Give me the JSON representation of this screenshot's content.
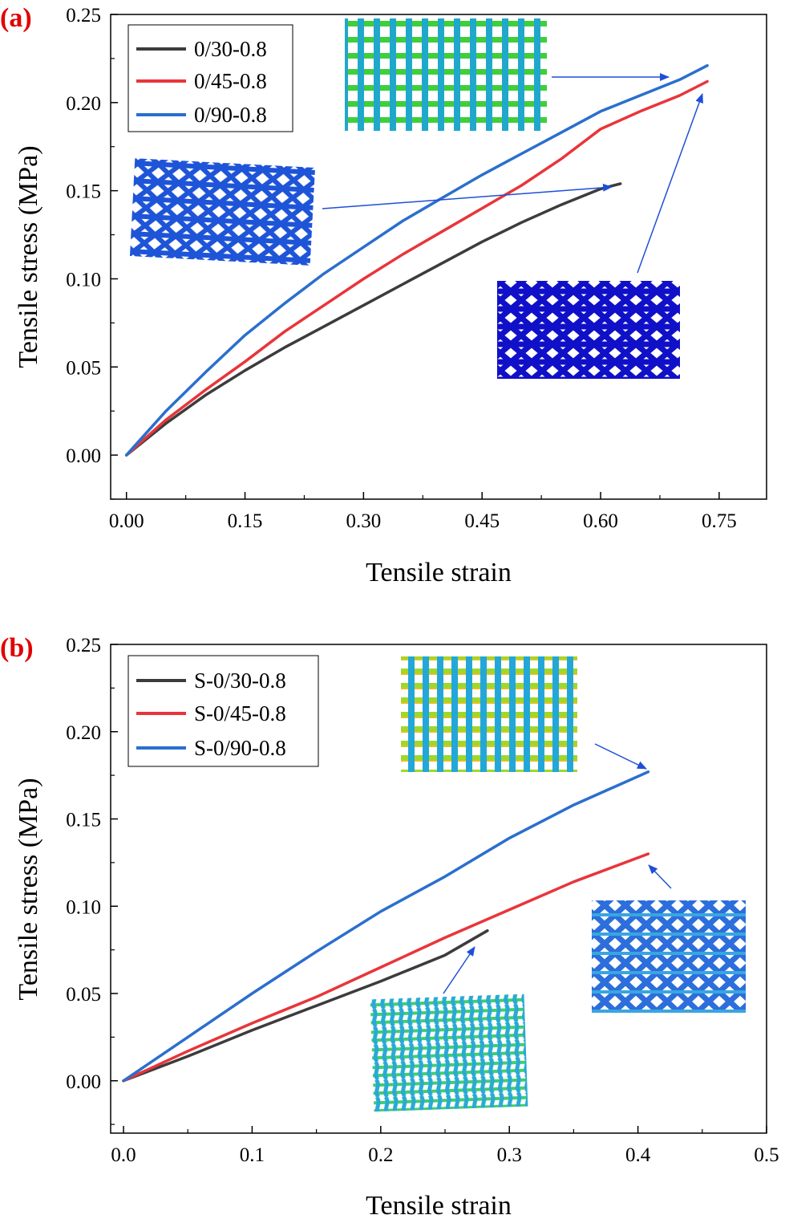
{
  "chart_data": [
    {
      "type": "line",
      "panel_label": "(a)",
      "xlabel": "Tensile strain",
      "ylabel": "Tensile stress (MPa)",
      "xlim": [
        -0.02,
        0.81
      ],
      "ylim": [
        -0.025,
        0.25
      ],
      "xticks": [
        "0.00",
        "0.15",
        "0.30",
        "0.45",
        "0.60",
        "0.75"
      ],
      "xtick_values": [
        0,
        0.15,
        0.3,
        0.45,
        0.6,
        0.75
      ],
      "yticks": [
        "0.00",
        "0.05",
        "0.10",
        "0.15",
        "0.20",
        "0.25"
      ],
      "ytick_values": [
        0,
        0.05,
        0.1,
        0.15,
        0.2,
        0.25
      ],
      "legend_position": "top-left",
      "series": [
        {
          "name": "0/30-0.8",
          "color": "#3c3c3c",
          "x": [
            0,
            0.05,
            0.1,
            0.15,
            0.2,
            0.25,
            0.3,
            0.35,
            0.4,
            0.45,
            0.5,
            0.55,
            0.6,
            0.625
          ],
          "y": [
            0,
            0.018,
            0.034,
            0.048,
            0.061,
            0.073,
            0.085,
            0.097,
            0.109,
            0.121,
            0.132,
            0.142,
            0.151,
            0.154
          ]
        },
        {
          "name": "0/45-0.8",
          "color": "#e8353a",
          "x": [
            0,
            0.05,
            0.1,
            0.15,
            0.2,
            0.25,
            0.3,
            0.35,
            0.4,
            0.45,
            0.5,
            0.55,
            0.6,
            0.65,
            0.7,
            0.735
          ],
          "y": [
            0,
            0.02,
            0.037,
            0.053,
            0.07,
            0.085,
            0.1,
            0.114,
            0.127,
            0.14,
            0.153,
            0.168,
            0.185,
            0.195,
            0.204,
            0.212
          ]
        },
        {
          "name": "0/90-0.8",
          "color": "#2a6fce",
          "x": [
            0,
            0.05,
            0.1,
            0.15,
            0.2,
            0.25,
            0.3,
            0.35,
            0.4,
            0.45,
            0.5,
            0.55,
            0.6,
            0.65,
            0.7,
            0.735
          ],
          "y": [
            0,
            0.025,
            0.047,
            0.068,
            0.086,
            0.103,
            0.118,
            0.133,
            0.146,
            0.159,
            0.171,
            0.183,
            0.195,
            0.204,
            0.213,
            0.221
          ]
        }
      ]
    },
    {
      "type": "line",
      "panel_label": "(b)",
      "xlabel": "Tensile strain",
      "ylabel": "Tensile stress (MPa)",
      "xlim": [
        -0.01,
        0.5
      ],
      "ylim": [
        -0.03,
        0.25
      ],
      "xticks": [
        "0.0",
        "0.1",
        "0.2",
        "0.3",
        "0.4",
        "0.5"
      ],
      "xtick_values": [
        0,
        0.1,
        0.2,
        0.3,
        0.4,
        0.5
      ],
      "yticks": [
        "0.00",
        "0.05",
        "0.10",
        "0.15",
        "0.20",
        "0.25"
      ],
      "ytick_values": [
        0,
        0.05,
        0.1,
        0.15,
        0.2,
        0.25
      ],
      "legend_position": "top-left",
      "series": [
        {
          "name": "S-0/30-0.8",
          "color": "#3c3c3c",
          "x": [
            0,
            0.05,
            0.1,
            0.15,
            0.2,
            0.25,
            0.283
          ],
          "y": [
            0,
            0.014,
            0.029,
            0.043,
            0.057,
            0.072,
            0.086
          ]
        },
        {
          "name": "S-0/45-0.8",
          "color": "#e8353a",
          "x": [
            0,
            0.05,
            0.1,
            0.15,
            0.2,
            0.25,
            0.3,
            0.35,
            0.408
          ],
          "y": [
            0,
            0.017,
            0.033,
            0.048,
            0.065,
            0.082,
            0.098,
            0.114,
            0.13
          ]
        },
        {
          "name": "S-0/90-0.8",
          "color": "#2a6fce",
          "x": [
            0,
            0.05,
            0.1,
            0.15,
            0.2,
            0.25,
            0.3,
            0.35,
            0.408
          ],
          "y": [
            0,
            0.025,
            0.05,
            0.074,
            0.097,
            0.117,
            0.139,
            0.158,
            0.177
          ]
        }
      ]
    }
  ]
}
